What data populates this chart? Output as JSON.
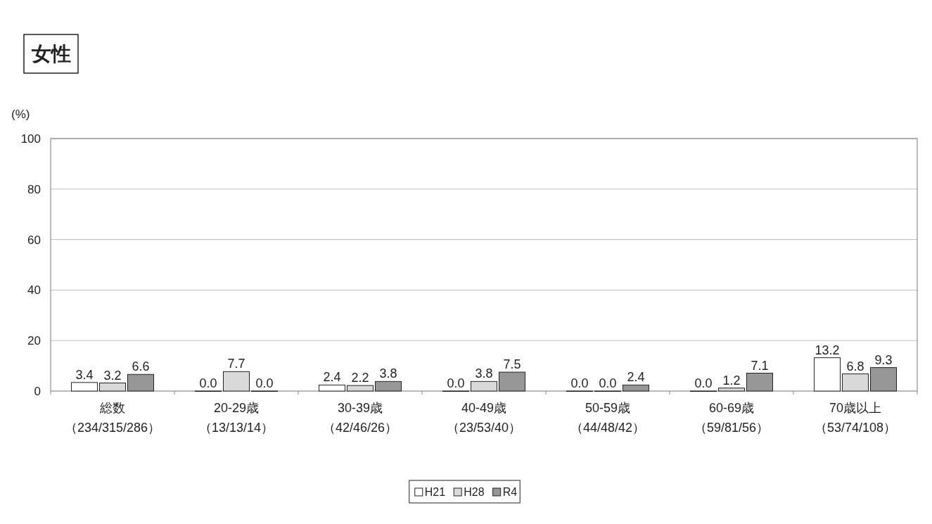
{
  "chart_data": {
    "type": "bar",
    "title": "女性",
    "ylabel": "(%)",
    "categories": [
      "総数（234/315/286）",
      "20-29歳（13/13/14）",
      "30-39歳（42/46/26）",
      "40-49歳（23/53/40）",
      "50-59歳（44/48/42）",
      "60-69歳（59/81/56）",
      "70歳以上（53/74/108）"
    ],
    "series": [
      {
        "name": "H21",
        "color": "#ffffff",
        "values": [
          3.4,
          0.0,
          2.4,
          0.0,
          0.0,
          0.0,
          13.2
        ],
        "value_labels": [
          "3.4",
          "0.0",
          "2.4",
          "0.0",
          "0.0",
          "0.0",
          "13.2"
        ]
      },
      {
        "name": "H28",
        "color": "#d9d9d9",
        "values": [
          3.2,
          7.7,
          2.2,
          3.8,
          0.0,
          1.2,
          6.8
        ],
        "value_labels": [
          "3.2",
          "7.7",
          "2.2",
          "3.8",
          "0.0",
          "1.2",
          "6.8"
        ]
      },
      {
        "name": "R4",
        "color": "#969696",
        "values": [
          6.6,
          0.0,
          3.8,
          7.5,
          2.4,
          7.1,
          9.3
        ],
        "value_labels": [
          "6.6",
          "0.0",
          "3.8",
          "7.5",
          "2.4",
          "7.1",
          "9.3"
        ]
      }
    ],
    "ylim": [
      0,
      100
    ],
    "yticks": [
      0,
      20,
      40,
      60,
      80,
      100
    ],
    "grid": "y",
    "legend": "bottom"
  }
}
